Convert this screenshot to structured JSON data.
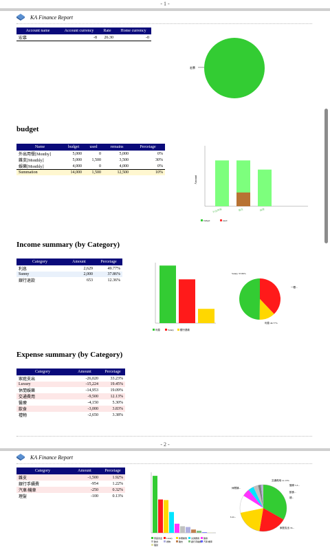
{
  "pages": [
    {
      "number": "- 1 -",
      "report_title": "KA Finance Report"
    },
    {
      "number": "- 2 -",
      "report_title": "KA Finance Report"
    }
  ],
  "account": {
    "headers": [
      "Account name",
      "Account currency",
      "Rate",
      "Home currency"
    ],
    "rows": [
      [
        "宏慕",
        "-8",
        "26.30",
        "-0"
      ]
    ],
    "pie_label": "宏慕"
  },
  "budget": {
    "title": "budget",
    "headers": [
      "Name",
      "budget",
      "used",
      "remains",
      "Percetage"
    ],
    "rows": [
      [
        "外出用餐[Monthy]",
        "5,000",
        "0",
        "5,000",
        "0%"
      ],
      [
        "雜支[Monthly]",
        "5,000",
        "1,500",
        "3,500",
        "30%"
      ],
      [
        "娛樂[Monthly]",
        "4,000",
        "0",
        "4,000",
        "0%"
      ]
    ],
    "summation": [
      "Summation",
      "14,000",
      "1,500",
      "12,500",
      "10%"
    ],
    "legend": [
      "budget",
      "used"
    ],
    "ylabel": "Amount"
  },
  "income": {
    "title": "Income summary (by Category)",
    "headers": [
      "Category",
      "Amount",
      "Percetage"
    ],
    "rows": [
      [
        "利息",
        "2,629",
        "49.77%"
      ],
      [
        "Sunny",
        "2,000",
        "37.86%"
      ],
      [
        "銀行退款",
        "653",
        "12.36%"
      ]
    ],
    "legend": [
      "利息",
      "Sunny",
      "銀行退款"
    ],
    "pie_labels": [
      "Sunny 37.86%",
      "一銀...",
      "利息 49.77%"
    ]
  },
  "expense": {
    "title": "Expense summary (by Category)",
    "headers": [
      "Category",
      "Amount",
      "Percetage"
    ],
    "rows": [
      [
        "家庭支出",
        "-26,020",
        "33.23%"
      ],
      [
        "Luxury",
        "-15,224",
        "19.45%"
      ],
      [
        "休閒娛樂",
        "-14,953",
        "19.09%"
      ],
      [
        "交通費用",
        "-9,500",
        "12.13%"
      ],
      [
        "醫療",
        "-4,150",
        "5.30%"
      ],
      [
        "飲食",
        "-3,000",
        "3.83%"
      ],
      [
        "禮物",
        "-2,650",
        "3.38%"
      ]
    ]
  },
  "expense2": {
    "headers": [
      "Category",
      "Amount",
      "Percetage"
    ],
    "rows": [
      [
        "雜支",
        "-1,500",
        "1.92%"
      ],
      [
        "銀行手續費",
        "-954",
        "1.22%"
      ],
      [
        "汽車/機車",
        "-250",
        "0.32%"
      ],
      [
        "理髮",
        "-100",
        "0.13%"
      ]
    ],
    "pie_labels": [
      "交通費用 12.13%",
      "休閒娛...",
      "醫療 5.3...",
      "飲食...",
      "禮...",
      "Lux...",
      "家庭支出 33..."
    ]
  },
  "colors": {
    "header_bg": "#0a0a7a",
    "green": "#33cc33",
    "red": "#ff1a1a",
    "yellow": "#ffd700",
    "brown": "#b87333"
  },
  "chart_data": [
    {
      "type": "pie",
      "labels": [
        "宏慕"
      ],
      "values": [
        100
      ]
    },
    {
      "type": "bar",
      "categories": [
        "外出用餐",
        "雜支",
        "娛樂"
      ],
      "series": [
        {
          "name": "budget",
          "values": [
            5000,
            5000,
            4000
          ]
        },
        {
          "name": "used",
          "values": [
            0,
            1500,
            0
          ]
        }
      ],
      "ylabel": "Amount"
    },
    {
      "type": "bar",
      "categories": [
        "利息",
        "Sunny",
        "銀行退款"
      ],
      "values": [
        2629,
        2000,
        653
      ]
    },
    {
      "type": "pie",
      "labels": [
        "利息",
        "Sunny",
        "銀行退款"
      ],
      "values": [
        49.77,
        37.86,
        12.36
      ]
    },
    {
      "type": "bar",
      "categories": [
        "家庭支出",
        "Luxury",
        "休閒娛樂",
        "交通費用",
        "醫療",
        "飲食",
        "禮物",
        "雜支",
        "銀行手續費",
        "汽車/機車",
        "理髮"
      ],
      "values": [
        26020,
        15224,
        14953,
        9500,
        4150,
        3000,
        2650,
        1500,
        954,
        250,
        100
      ]
    },
    {
      "type": "pie",
      "labels": [
        "家庭支出",
        "Luxury",
        "休閒娛樂",
        "交通費用",
        "醫療",
        "飲食",
        "禮物",
        "雜支",
        "銀行手續費",
        "汽車/機車",
        "理髮"
      ],
      "values": [
        33.23,
        19.45,
        19.09,
        12.13,
        5.3,
        3.83,
        3.38,
        1.92,
        1.22,
        0.32,
        0.13
      ]
    }
  ]
}
